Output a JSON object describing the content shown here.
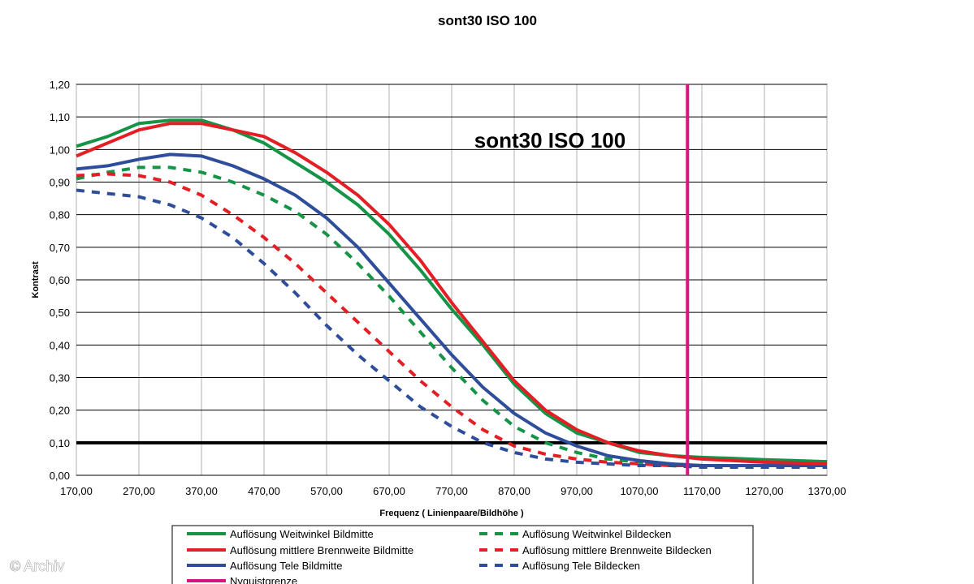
{
  "credit": "© Archiv",
  "chart_data": {
    "type": "line",
    "title": "sont30   ISO 100",
    "annotation": "sont30   ISO 100",
    "xlabel": "Frequenz ( Linienpaare/Bildhöhe )",
    "ylabel": "Kontrast",
    "xlim": [
      170,
      1370
    ],
    "ylim": [
      0,
      1.2
    ],
    "x_ticks": [
      "170,00",
      "270,00",
      "370,00",
      "470,00",
      "570,00",
      "670,00",
      "770,00",
      "870,00",
      "970,00",
      "1070,00",
      "1170,00",
      "1270,00",
      "1370,00"
    ],
    "y_ticks": [
      "0,00",
      "0,10",
      "0,20",
      "0,30",
      "0,40",
      "0,50",
      "0,60",
      "0,70",
      "0,80",
      "0,90",
      "1,00",
      "1,10",
      "1,20"
    ],
    "grid": true,
    "legend_position": "bottom",
    "threshold_line": {
      "y": 0.1,
      "color": "#000000"
    },
    "series": [
      {
        "name": "Auflösung Weitwinkel Bildmitte",
        "color": "#159447",
        "dash": false,
        "x": [
          170,
          220,
          270,
          320,
          370,
          420,
          470,
          520,
          570,
          620,
          670,
          720,
          770,
          820,
          870,
          920,
          970,
          1020,
          1070,
          1120,
          1170,
          1220,
          1270,
          1320,
          1370
        ],
        "y": [
          1.01,
          1.04,
          1.08,
          1.09,
          1.09,
          1.06,
          1.02,
          0.96,
          0.9,
          0.83,
          0.74,
          0.63,
          0.51,
          0.4,
          0.28,
          0.19,
          0.13,
          0.1,
          0.07,
          0.06,
          0.055,
          0.052,
          0.048,
          0.045,
          0.042
        ]
      },
      {
        "name": "Auflösung mittlere Brennweite Bildmitte",
        "color": "#e31e25",
        "dash": false,
        "x": [
          170,
          220,
          270,
          320,
          370,
          420,
          470,
          520,
          570,
          620,
          670,
          720,
          770,
          820,
          870,
          920,
          970,
          1020,
          1070,
          1120,
          1170,
          1220,
          1270,
          1320,
          1370
        ],
        "y": [
          0.98,
          1.02,
          1.06,
          1.08,
          1.08,
          1.06,
          1.04,
          0.99,
          0.93,
          0.86,
          0.77,
          0.66,
          0.53,
          0.41,
          0.29,
          0.2,
          0.14,
          0.1,
          0.075,
          0.06,
          0.05,
          0.045,
          0.04,
          0.038,
          0.035
        ]
      },
      {
        "name": "Auflösung Tele Bildmitte",
        "color": "#2e4d9a",
        "dash": false,
        "x": [
          170,
          220,
          270,
          320,
          370,
          420,
          470,
          520,
          570,
          620,
          670,
          720,
          770,
          820,
          870,
          920,
          970,
          1020,
          1070,
          1120,
          1170,
          1220,
          1270,
          1320,
          1370
        ],
        "y": [
          0.94,
          0.95,
          0.97,
          0.985,
          0.98,
          0.95,
          0.91,
          0.86,
          0.79,
          0.7,
          0.59,
          0.48,
          0.37,
          0.27,
          0.19,
          0.13,
          0.09,
          0.06,
          0.045,
          0.035,
          0.03,
          0.03,
          0.03,
          0.03,
          0.03
        ]
      },
      {
        "name": "Nyquistgrenze",
        "color": "#d4167f",
        "dash": false,
        "vertical": true,
        "x": [
          1147,
          1147
        ],
        "y": [
          0,
          1.2
        ]
      },
      {
        "name": "Auflösung Weitwinkel Bildecken",
        "color": "#159447",
        "dash": true,
        "x": [
          170,
          220,
          270,
          320,
          370,
          420,
          470,
          520,
          570,
          620,
          670,
          720,
          770,
          820,
          870,
          920,
          970,
          1020,
          1070,
          1120,
          1170,
          1220,
          1270,
          1320,
          1370
        ],
        "y": [
          0.91,
          0.93,
          0.945,
          0.945,
          0.93,
          0.9,
          0.86,
          0.81,
          0.74,
          0.65,
          0.55,
          0.44,
          0.33,
          0.23,
          0.15,
          0.1,
          0.07,
          0.05,
          0.04,
          0.035,
          0.03,
          0.03,
          0.03,
          0.03,
          0.03
        ]
      },
      {
        "name": "Auflösung mittlere Brennweite Bildecken",
        "color": "#e31e25",
        "dash": true,
        "x": [
          170,
          220,
          270,
          320,
          370,
          420,
          470,
          520,
          570,
          620,
          670,
          720,
          770,
          820,
          870,
          920,
          970,
          1020,
          1070,
          1120,
          1170,
          1220,
          1270,
          1320,
          1370
        ],
        "y": [
          0.92,
          0.925,
          0.92,
          0.9,
          0.86,
          0.8,
          0.73,
          0.65,
          0.56,
          0.47,
          0.38,
          0.29,
          0.21,
          0.14,
          0.09,
          0.065,
          0.05,
          0.04,
          0.035,
          0.03,
          0.03,
          0.03,
          0.03,
          0.03,
          0.03
        ]
      },
      {
        "name": "Auflösung Tele Bildecken",
        "color": "#2e4d9a",
        "dash": true,
        "x": [
          170,
          220,
          270,
          320,
          370,
          420,
          470,
          520,
          570,
          620,
          670,
          720,
          770,
          820,
          870,
          920,
          970,
          1020,
          1070,
          1120,
          1170,
          1220,
          1270,
          1320,
          1370
        ],
        "y": [
          0.875,
          0.865,
          0.855,
          0.83,
          0.79,
          0.73,
          0.65,
          0.56,
          0.46,
          0.37,
          0.29,
          0.21,
          0.15,
          0.1,
          0.07,
          0.05,
          0.04,
          0.035,
          0.03,
          0.03,
          0.025,
          0.025,
          0.025,
          0.025,
          0.025
        ]
      }
    ]
  }
}
